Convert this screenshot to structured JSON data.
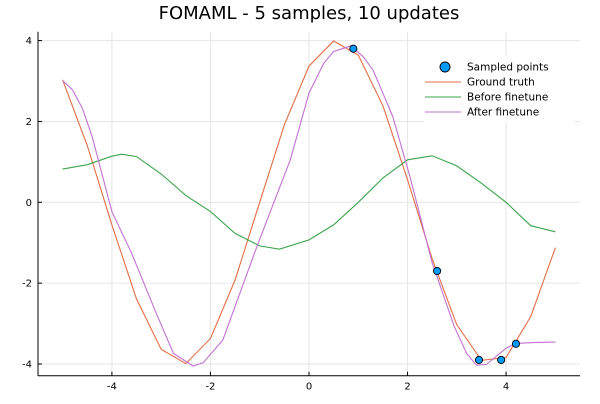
{
  "chart_data": {
    "type": "line",
    "title": "FOMAML - 5 samples, 10 updates",
    "xlabel": "",
    "ylabel": "",
    "xlim": [
      -5.5,
      5.5
    ],
    "ylim": [
      -4.29,
      4.22
    ],
    "xticks": [
      -4,
      -2,
      0,
      2,
      4
    ],
    "yticks": [
      -4,
      -2,
      0,
      2,
      4
    ],
    "grid": true,
    "legend_position": "top-right",
    "series": [
      {
        "name": "Sampled points",
        "kind": "scatter",
        "color": "#009AF9",
        "x": [
          0.9,
          2.6,
          3.45,
          3.9,
          4.2
        ],
        "y": [
          3.8,
          -1.7,
          -3.9,
          -3.9,
          -3.5
        ]
      },
      {
        "name": "Ground truth",
        "kind": "line",
        "color": "#E26F46",
        "x": [
          -5,
          -4.5,
          -4,
          -3.5,
          -3,
          -2.5,
          -2,
          -1.5,
          -1,
          -0.5,
          0,
          0.5,
          1,
          1.5,
          2,
          2.5,
          3,
          3.5,
          4,
          4.5,
          5
        ],
        "y": [
          3.03,
          1.4,
          -0.56,
          -2.39,
          -3.64,
          -3.99,
          -3.37,
          -1.92,
          0,
          1.92,
          3.37,
          3.99,
          3.64,
          2.39,
          0.56,
          -1.4,
          -3.03,
          -3.91,
          -3.84,
          -2.83,
          -1.12
        ]
      },
      {
        "name": "Before finetune",
        "kind": "line",
        "color": "#3DA44D",
        "x": [
          -5,
          -4.5,
          -4,
          -3.8,
          -3.5,
          -3,
          -2.5,
          -2,
          -1.5,
          -1,
          -0.6,
          0,
          0.5,
          1,
          1.5,
          2,
          2.5,
          3,
          3.5,
          4,
          4.5,
          5
        ],
        "y": [
          0.82,
          0.93,
          1.14,
          1.19,
          1.13,
          0.7,
          0.17,
          -0.23,
          -0.77,
          -1.08,
          -1.16,
          -0.93,
          -0.56,
          0,
          0.6,
          1.05,
          1.15,
          0.9,
          0.47,
          0,
          -0.58,
          -0.73
        ]
      },
      {
        "name": "After finetune",
        "kind": "line",
        "color": "#C271D2",
        "x": [
          -5,
          -4.8,
          -4.6,
          -4.4,
          -4,
          -3.6,
          -3.1,
          -2.75,
          -2.35,
          -2.15,
          -1.75,
          -1.06,
          -0.38,
          0,
          0.3,
          0.5,
          0.85,
          1.1,
          1.3,
          1.7,
          2.05,
          2.5,
          2.95,
          3.2,
          3.4,
          3.6,
          4,
          4.2,
          4.55,
          5
        ],
        "y": [
          3.01,
          2.78,
          2.33,
          1.62,
          -0.23,
          -1.26,
          -2.75,
          -3.74,
          -4.05,
          -3.97,
          -3.41,
          -1.1,
          1.05,
          2.7,
          3.44,
          3.73,
          3.87,
          3.6,
          3.27,
          2.12,
          0.63,
          -1.5,
          -3.08,
          -3.74,
          -4.03,
          -4.01,
          -3.61,
          -3.49,
          -3.47,
          -3.46
        ]
      }
    ]
  }
}
